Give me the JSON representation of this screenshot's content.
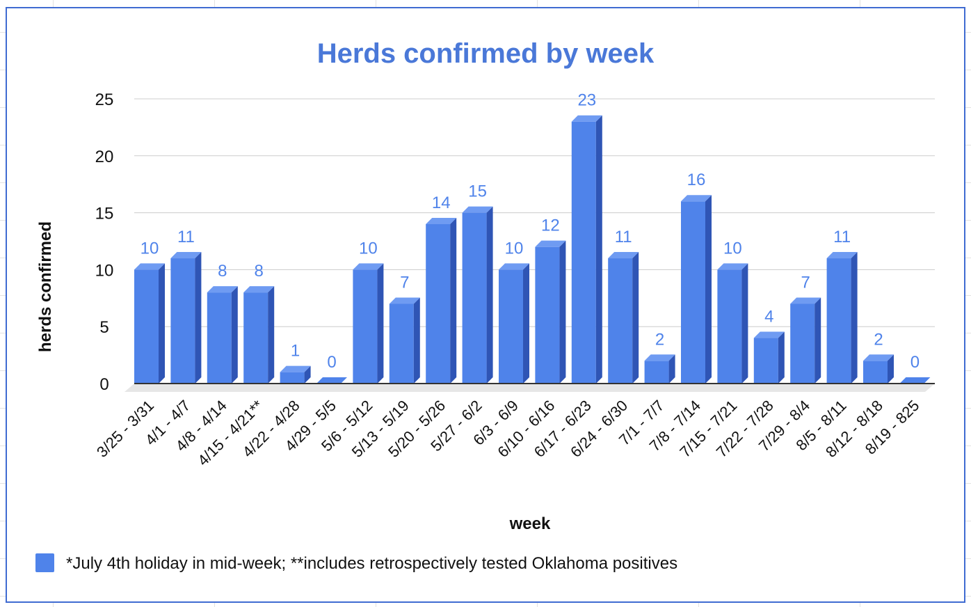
{
  "chart_data": {
    "type": "bar",
    "title": "Herds confirmed by week",
    "xlabel": "week",
    "ylabel": "herds confirmed",
    "ylim": [
      0,
      25
    ],
    "yticks": [
      0,
      5,
      10,
      15,
      20,
      25
    ],
    "categories": [
      "3/25 - 3/31",
      "4/1 - 4/7",
      "4/8 - 4/14",
      "4/15 - 4/21**",
      "4/22 - 4/28",
      "4/29 - 5/5",
      "5/6 - 5/12",
      "5/13 - 5/19",
      "5/20 - 5/26",
      "5/27 - 6/2",
      "6/3 - 6/9",
      "6/10 - 6/16",
      "6/17 - 6/23",
      "6/24 - 6/30",
      "7/1 - 7/7",
      "7/8 - 7/14",
      "7/15 - 7/21",
      "7/22 - 7/28",
      "7/29 - 8/4",
      "8/5 - 8/11",
      "8/12 - 8/18",
      "8/19 - 825"
    ],
    "values": [
      10,
      11,
      8,
      8,
      1,
      0,
      10,
      7,
      14,
      15,
      10,
      12,
      23,
      11,
      2,
      16,
      10,
      4,
      7,
      11,
      2,
      0
    ],
    "legend": "*July 4th holiday in mid-week; **includes retrospectively tested Oklahoma positives",
    "legend_position": "bottom",
    "bar_color": "#4f83ea",
    "bar_side_color": "#2f55b5",
    "bar_top_color": "#6f9bf2",
    "value_label_color": "#4f83ea",
    "title_color": "#4a78d8",
    "grid": true
  }
}
